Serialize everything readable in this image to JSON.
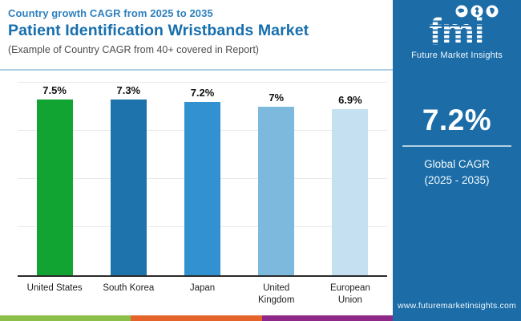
{
  "header": {
    "kicker": "Country growth CAGR from 2025 to 2035",
    "title": "Patient Identification Wristbands Market",
    "subtitle": "(Example of Country CAGR from 40+ covered in Report)"
  },
  "chart_data": {
    "type": "bar",
    "title": "Patient Identification Wristbands Market — Country growth CAGR from 2025 to 2035",
    "categories": [
      "United States",
      "South Korea",
      "Japan",
      "United\nKingdom",
      "European\nUnion"
    ],
    "values": [
      7.5,
      7.3,
      7.2,
      7.0,
      6.9
    ],
    "value_labels": [
      "7.5%",
      "7.3%",
      "7.2%",
      "7%",
      "6.9%"
    ],
    "bar_colors": [
      "#12a433",
      "#1f73ad",
      "#3191d1",
      "#7cb9dd",
      "#c5e0f0"
    ],
    "xlabel": "",
    "ylabel": "",
    "ylim": [
      0,
      8
    ],
    "gridline_step": 2,
    "grid": true,
    "legend": false
  },
  "sidebar": {
    "brand": {
      "logo_text": "fmi",
      "brand_name": "Future Market Insights",
      "logo_icons": [
        "globe-americas-icon",
        "globe-europe-icon",
        "globe-south-america-icon"
      ]
    },
    "cagr_value": "7.2%",
    "cagr_label_line1": "Global CAGR",
    "cagr_label_line2": "(2025 - 2035)",
    "website": "www.futuremarketinsights.com",
    "background": "#1b6ca7"
  },
  "footer_stripe_colors": [
    "#8bbf4a",
    "#e4632a",
    "#8d2788"
  ]
}
